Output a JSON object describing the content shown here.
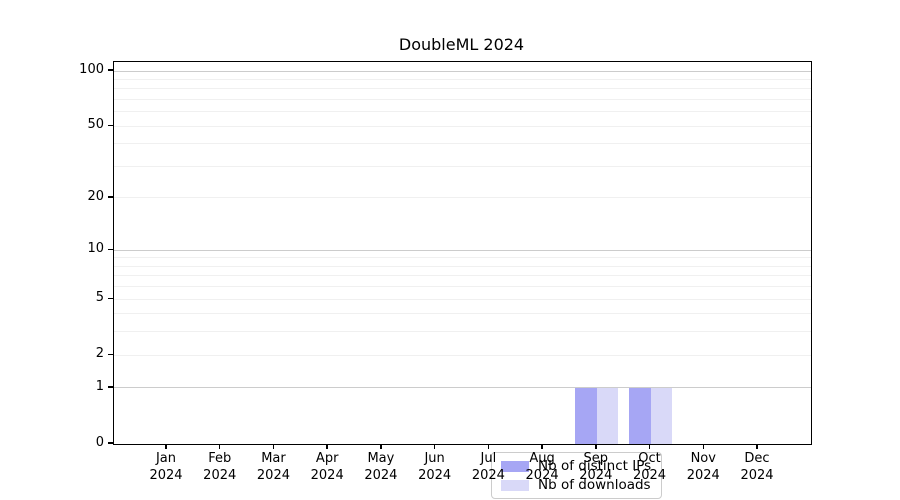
{
  "chart_data": {
    "type": "bar",
    "title": "DoubleML 2024",
    "xlabel": "",
    "ylabel": "",
    "categories": [
      "Jan",
      "Feb",
      "Mar",
      "Apr",
      "May",
      "Jun",
      "Jul",
      "Aug",
      "Sep",
      "Oct",
      "Nov",
      "Dec"
    ],
    "category_year": "2024",
    "series": [
      {
        "name": "Nb of distinct IPs",
        "color": "#a6a6f4",
        "values": [
          0,
          0,
          0,
          0,
          0,
          0,
          0,
          0,
          1,
          1,
          0,
          0
        ]
      },
      {
        "name": "Nb of downloads",
        "color": "#d9d9f8",
        "values": [
          0,
          0,
          0,
          0,
          0,
          0,
          0,
          0,
          1,
          1,
          0,
          0
        ]
      }
    ],
    "y_scale": "log1p",
    "ylim": [
      0,
      112
    ],
    "y_ticks": [
      0,
      1,
      2,
      5,
      10,
      20,
      50,
      100
    ],
    "y_grid_major": [
      1,
      10,
      100
    ],
    "y_grid_minor": [
      2,
      3,
      4,
      5,
      6,
      7,
      8,
      9,
      20,
      30,
      40,
      50,
      60,
      70,
      80,
      90
    ],
    "grid": "horizontal",
    "legend_position": "lower center",
    "axis_color": "#000000",
    "background_color": "#ffffff"
  }
}
